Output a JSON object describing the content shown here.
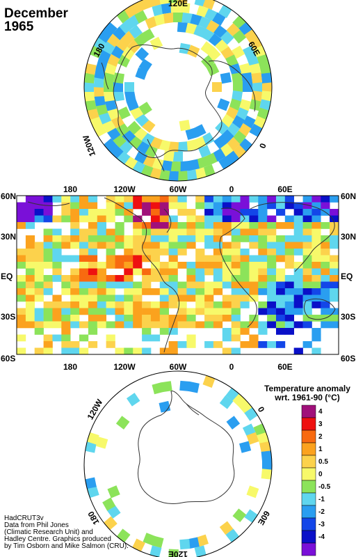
{
  "title": {
    "line1": "December",
    "line2": "1965"
  },
  "north_polar": {
    "lon_labels": [
      "120E",
      "60E",
      "0",
      "120W",
      "180"
    ]
  },
  "main_map": {
    "top_lon_labels": [
      "180",
      "120W",
      "60W",
      "0",
      "60E"
    ],
    "bottom_lon_labels": [
      "180",
      "120W",
      "60W",
      "0",
      "60E"
    ],
    "left_lat_labels": [
      "60N",
      "30N",
      "EQ",
      "30S",
      "60S"
    ],
    "right_lat_labels": [
      "60N",
      "30N",
      "EQ",
      "30S",
      "60S"
    ]
  },
  "south_polar": {
    "lon_labels": [
      "120W",
      "0",
      "60E",
      "180",
      "120E"
    ]
  },
  "legend": {
    "title_line1": "Temperature anomaly",
    "title_line2": "wrt. 1961-90  (°C)",
    "classes": [
      {
        "label": "4",
        "color": "#a0107a"
      },
      {
        "label": "3",
        "color": "#ee1010"
      },
      {
        "label": "2",
        "color": "#f86a10"
      },
      {
        "label": "1",
        "color": "#fba21e"
      },
      {
        "label": "0.5",
        "color": "#fcd24c"
      },
      {
        "label": "0",
        "color": "#f7f96a"
      },
      {
        "label": "-0.5",
        "color": "#8ce35a"
      },
      {
        "label": "-1",
        "color": "#5fd6ee"
      },
      {
        "label": "-2",
        "color": "#2a9ef0"
      },
      {
        "label": "-3",
        "color": "#1346e8"
      },
      {
        "label": "-4",
        "color": "#0a10c8"
      },
      {
        "label": "",
        "color": "#7a10d8"
      }
    ]
  },
  "credits": {
    "line1": "HadCRUT3v",
    "line2": "Data from Phil Jones",
    "line3": "(Climatic Research Unit) and",
    "line4": "Hadley Centre.  Graphics produced",
    "line5": "by Tim Osborn and Mike Salmon (CRU)."
  }
}
